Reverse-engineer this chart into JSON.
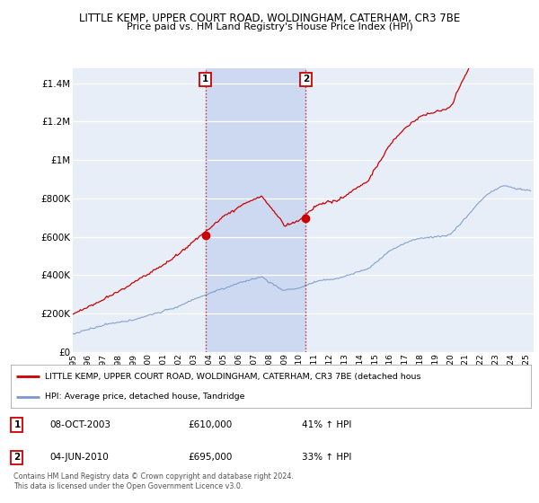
{
  "title": "LITTLE KEMP, UPPER COURT ROAD, WOLDINGHAM, CATERHAM, CR3 7BE",
  "subtitle": "Price paid vs. HM Land Registry's House Price Index (HPI)",
  "ylabel_ticks": [
    "£0",
    "£200K",
    "£400K",
    "£600K",
    "£800K",
    "£1M",
    "£1.2M",
    "£1.4M"
  ],
  "ytick_values": [
    0,
    200000,
    400000,
    600000,
    800000,
    1000000,
    1200000,
    1400000
  ],
  "ylim": [
    0,
    1480000
  ],
  "xlim_start": 1995.0,
  "xlim_end": 2025.5,
  "background_color": "#ffffff",
  "plot_bg_color": "#e8eef8",
  "grid_color": "#ffffff",
  "highlight_color": "#ccd9f0",
  "line1_color": "#cc0000",
  "line2_color": "#7799cc",
  "marker1_color": "#cc0000",
  "sale1_x": 2003.77,
  "sale1_y": 610000,
  "sale2_x": 2010.42,
  "sale2_y": 695000,
  "legend_line1": "LITTLE KEMP, UPPER COURT ROAD, WOLDINGHAM, CATERHAM, CR3 7BE (detached hous",
  "legend_line2": "HPI: Average price, detached house, Tandridge",
  "annotation1_date": "08-OCT-2003",
  "annotation1_price": "£610,000",
  "annotation1_hpi": "41% ↑ HPI",
  "annotation2_date": "04-JUN-2010",
  "annotation2_price": "£695,000",
  "annotation2_hpi": "33% ↑ HPI",
  "footer": "Contains HM Land Registry data © Crown copyright and database right 2024.\nThis data is licensed under the Open Government Licence v3.0."
}
